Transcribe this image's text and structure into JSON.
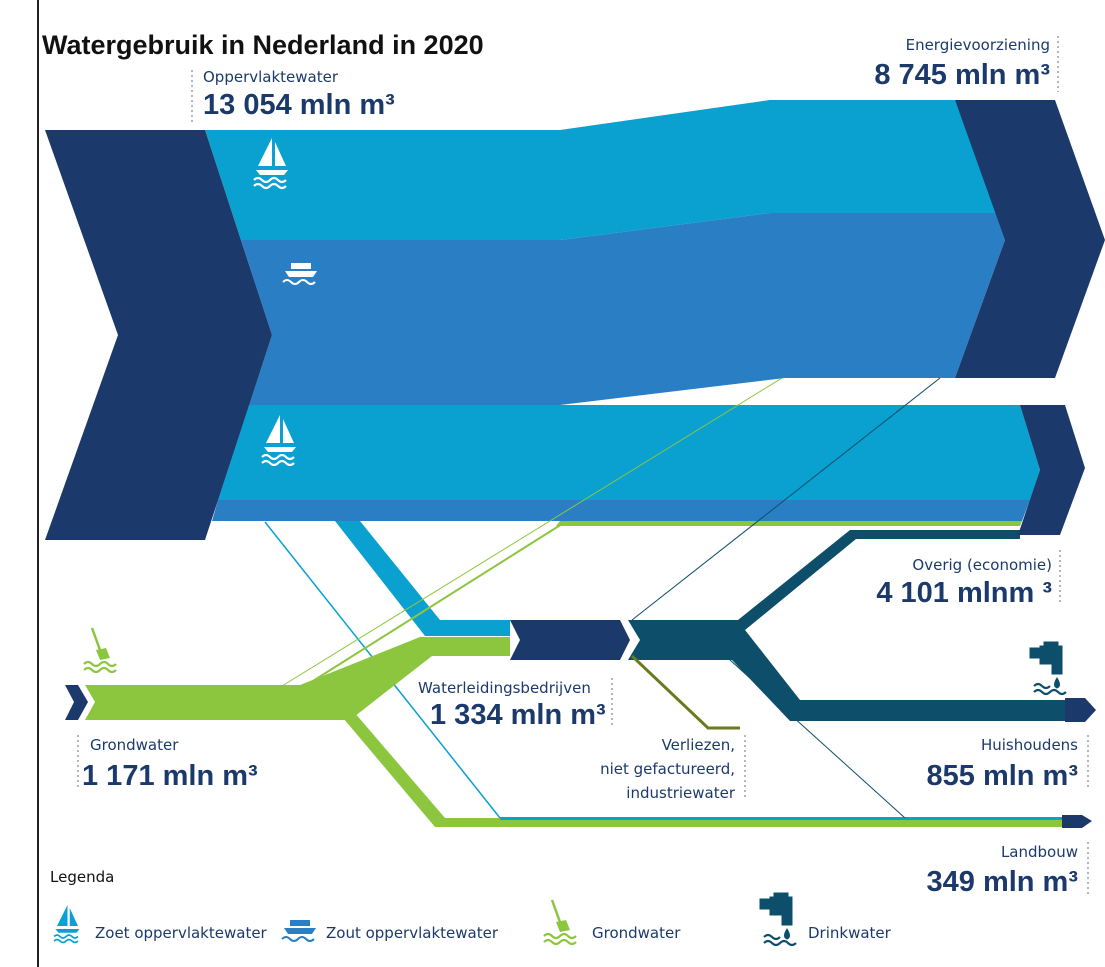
{
  "title": "Watergebruik in Nederland in 2020",
  "nodes": [
    {
      "label": "Oppervlaktewater",
      "value": "13 054 mln m³"
    },
    {
      "label": "Energievoorziening",
      "value": "8 745 mln m³"
    },
    {
      "label": "Overig (economie)",
      "value": "4 101 mlnm ³"
    },
    {
      "label": "Waterleidingsbedrijven",
      "value": "1 334 mln m³"
    },
    {
      "label": "Grondwater",
      "value": "1 171 mln m³"
    },
    {
      "label": "Huishoudens",
      "value": "855 mln m³"
    },
    {
      "label": "Landbouw",
      "value": "349 mln m³"
    }
  ],
  "losses": [
    "Verliezen,",
    "niet gefactureerd,",
    "industriewater"
  ],
  "legend": {
    "title": "Legenda",
    "items": [
      "Zoet oppervlaktewater",
      "Zout oppervlaktewater",
      "Grondwater",
      "Drinkwater"
    ]
  }
}
